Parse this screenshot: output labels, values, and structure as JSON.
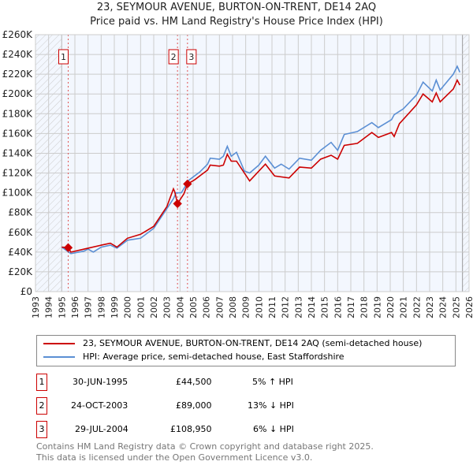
{
  "title_line1": "23, SEYMOUR AVENUE, BURTON-ON-TRENT, DE14 2AQ",
  "title_line2": "Price paid vs. HM Land Registry's House Price Index (HPI)",
  "chart_data": {
    "type": "line",
    "title": "23, SEYMOUR AVENUE, BURTON-ON-TRENT, DE14 2AQ — Price paid vs. HM Land Registry's House Price Index (HPI)",
    "xlim": [
      1993,
      2026
    ],
    "ylim": [
      0,
      260000
    ],
    "x_ticks": [
      "1993",
      "1994",
      "1995",
      "1996",
      "1997",
      "1998",
      "1999",
      "2000",
      "2001",
      "2002",
      "2003",
      "2004",
      "2005",
      "2006",
      "2007",
      "2008",
      "2009",
      "2010",
      "2011",
      "2012",
      "2013",
      "2014",
      "2015",
      "2016",
      "2017",
      "2018",
      "2019",
      "2020",
      "2021",
      "2022",
      "2023",
      "2024",
      "2025",
      "2026"
    ],
    "y_ticks": [
      "£0",
      "£20K",
      "£40K",
      "£60K",
      "£80K",
      "£100K",
      "£120K",
      "£140K",
      "£160K",
      "£180K",
      "£200K",
      "£220K",
      "£240K",
      "£260K"
    ],
    "grid": true,
    "series": [
      {
        "name": "23, SEYMOUR AVENUE, BURTON-ON-TRENT, DE14 2AQ (semi-detached house)",
        "color": "#cc0000",
        "points": [
          [
            1995,
            45
          ],
          [
            1995.5,
            44.5
          ],
          [
            1995.7,
            40
          ],
          [
            1996.7,
            43
          ],
          [
            1998,
            47
          ],
          [
            1998.7,
            49
          ],
          [
            1999.2,
            45
          ],
          [
            2000,
            54
          ],
          [
            2001,
            58
          ],
          [
            2002,
            66
          ],
          [
            2003,
            86
          ],
          [
            2003.5,
            104
          ],
          [
            2003.6,
            101
          ],
          [
            2003.81,
            89
          ],
          [
            2004.3,
            99
          ],
          [
            2004.57,
            108.95
          ],
          [
            2005.1,
            113
          ],
          [
            2006.1,
            123
          ],
          [
            2006.3,
            128
          ],
          [
            2007,
            127
          ],
          [
            2007.3,
            128
          ],
          [
            2007.6,
            139
          ],
          [
            2007.9,
            132
          ],
          [
            2008.3,
            132
          ],
          [
            2009.3,
            112
          ],
          [
            2010.5,
            129
          ],
          [
            2011.2,
            117
          ],
          [
            2012.3,
            115
          ],
          [
            2013.1,
            126
          ],
          [
            2014,
            125
          ],
          [
            2014.7,
            134
          ],
          [
            2015.5,
            138
          ],
          [
            2016,
            134
          ],
          [
            2016.5,
            148
          ],
          [
            2017.5,
            150
          ],
          [
            2018.6,
            161
          ],
          [
            2019.1,
            156
          ],
          [
            2020.1,
            161
          ],
          [
            2020.3,
            157
          ],
          [
            2020.7,
            170
          ],
          [
            2022,
            189
          ],
          [
            2022.5,
            200
          ],
          [
            2023.2,
            192
          ],
          [
            2023.5,
            201
          ],
          [
            2023.8,
            192
          ],
          [
            2024.8,
            205
          ],
          [
            2025.1,
            214
          ],
          [
            2025.3,
            209
          ]
        ]
      },
      {
        "name": "HPI: Average price, semi-detached house, East Staffordshire",
        "color": "#5b8fd4",
        "points": [
          [
            1995,
            45
          ],
          [
            1995.7,
            38.5
          ],
          [
            1996.7,
            41
          ],
          [
            1997,
            43
          ],
          [
            1997.4,
            40
          ],
          [
            1998,
            45
          ],
          [
            1998.7,
            47
          ],
          [
            1999.2,
            44
          ],
          [
            2000,
            52
          ],
          [
            2001,
            54
          ],
          [
            2002,
            64
          ],
          [
            2003,
            84
          ],
          [
            2003.5,
            94
          ],
          [
            2003.7,
            100
          ],
          [
            2004.1,
            100
          ],
          [
            2004.7,
            113
          ],
          [
            2005.5,
            121
          ],
          [
            2006.1,
            129
          ],
          [
            2006.3,
            135
          ],
          [
            2007,
            134
          ],
          [
            2007.3,
            137
          ],
          [
            2007.6,
            147
          ],
          [
            2007.9,
            137
          ],
          [
            2008.3,
            141
          ],
          [
            2008.9,
            122
          ],
          [
            2009.3,
            120
          ],
          [
            2010,
            128
          ],
          [
            2010.5,
            137
          ],
          [
            2011.2,
            125
          ],
          [
            2011.7,
            129
          ],
          [
            2012.3,
            124
          ],
          [
            2013.1,
            135
          ],
          [
            2014,
            133
          ],
          [
            2014.7,
            143
          ],
          [
            2015.5,
            151
          ],
          [
            2016,
            143
          ],
          [
            2016.5,
            159
          ],
          [
            2017.5,
            162
          ],
          [
            2018.6,
            171
          ],
          [
            2019.1,
            166
          ],
          [
            2020.1,
            174
          ],
          [
            2020.3,
            179
          ],
          [
            2021,
            185
          ],
          [
            2022,
            199
          ],
          [
            2022.5,
            212
          ],
          [
            2023.2,
            203
          ],
          [
            2023.5,
            214
          ],
          [
            2023.8,
            204
          ],
          [
            2024.8,
            220
          ],
          [
            2025.1,
            228
          ],
          [
            2025.3,
            222
          ]
        ]
      }
    ],
    "value_units": "thousands GBP",
    "sales": [
      {
        "label": "1",
        "year": 1995.49,
        "value": 44.5
      },
      {
        "label": "2",
        "year": 2003.81,
        "value": 89
      },
      {
        "label": "3",
        "year": 2004.57,
        "value": 108.95
      }
    ],
    "shaded_ranges": [
      [
        1993,
        1995
      ],
      [
        2025.5,
        2026
      ]
    ],
    "legend_placement": "below"
  },
  "legend": {
    "property": "23, SEYMOUR AVENUE, BURTON-ON-TRENT, DE14 2AQ (semi-detached house)",
    "hpi": "HPI: Average price, semi-detached house, East Staffordshire"
  },
  "transactions": [
    {
      "num": "1",
      "date": "30-JUN-1995",
      "price": "£44,500",
      "hpi": "5% ↑ HPI"
    },
    {
      "num": "2",
      "date": "24-OCT-2003",
      "price": "£89,000",
      "hpi": "13% ↓ HPI"
    },
    {
      "num": "3",
      "date": "29-JUL-2004",
      "price": "£108,950",
      "hpi": "6% ↓ HPI"
    }
  ],
  "footer": {
    "line1": "Contains HM Land Registry data © Crown copyright and database right 2025.",
    "line2": "This data is licensed under the Open Government Licence v3.0."
  }
}
